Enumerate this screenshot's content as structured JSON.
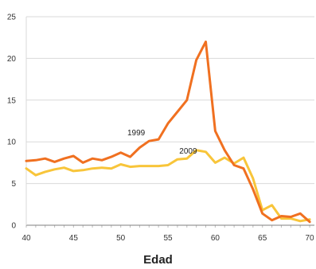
{
  "chart_data": {
    "type": "line",
    "title": "",
    "xlabel": "Edad",
    "ylabel": "",
    "xlim": [
      40,
      70.5
    ],
    "ylim": [
      0,
      25
    ],
    "x_ticks": [
      "40",
      "45",
      "50",
      "55",
      "60",
      "65",
      "70"
    ],
    "y_ticks": [
      "0",
      "5",
      "10",
      "15",
      "20",
      "25"
    ],
    "grid": "horizontal",
    "legend": "none",
    "x": [
      40,
      41,
      42,
      43,
      44,
      45,
      46,
      47,
      48,
      49,
      50,
      51,
      52,
      53,
      54,
      55,
      56,
      57,
      58,
      59,
      60,
      61,
      62,
      63,
      64,
      65,
      66,
      67,
      68,
      69,
      70
    ],
    "series": [
      {
        "name": "1999",
        "color": "#f07020",
        "label_at": [
          50.7,
          10.8
        ],
        "values": [
          7.7,
          7.8,
          8.0,
          7.6,
          8.0,
          8.3,
          7.5,
          8.0,
          7.8,
          8.2,
          8.7,
          8.2,
          9.3,
          10.1,
          10.3,
          12.2,
          13.6,
          15.0,
          19.8,
          22.0,
          11.3,
          9.0,
          7.2,
          6.8,
          4.3,
          1.4,
          0.6,
          1.1,
          1.0,
          1.4,
          0.4
        ]
      },
      {
        "name": "2009",
        "color": "#f8c53a",
        "label_at": [
          56.2,
          8.6
        ],
        "values": [
          6.8,
          6.0,
          6.4,
          6.7,
          6.9,
          6.5,
          6.6,
          6.8,
          6.9,
          6.8,
          7.3,
          7.0,
          7.1,
          7.1,
          7.1,
          7.2,
          7.9,
          8.0,
          9.0,
          8.8,
          7.5,
          8.1,
          7.4,
          8.1,
          5.6,
          1.8,
          2.4,
          0.8,
          0.8,
          0.5,
          0.7
        ]
      }
    ]
  }
}
